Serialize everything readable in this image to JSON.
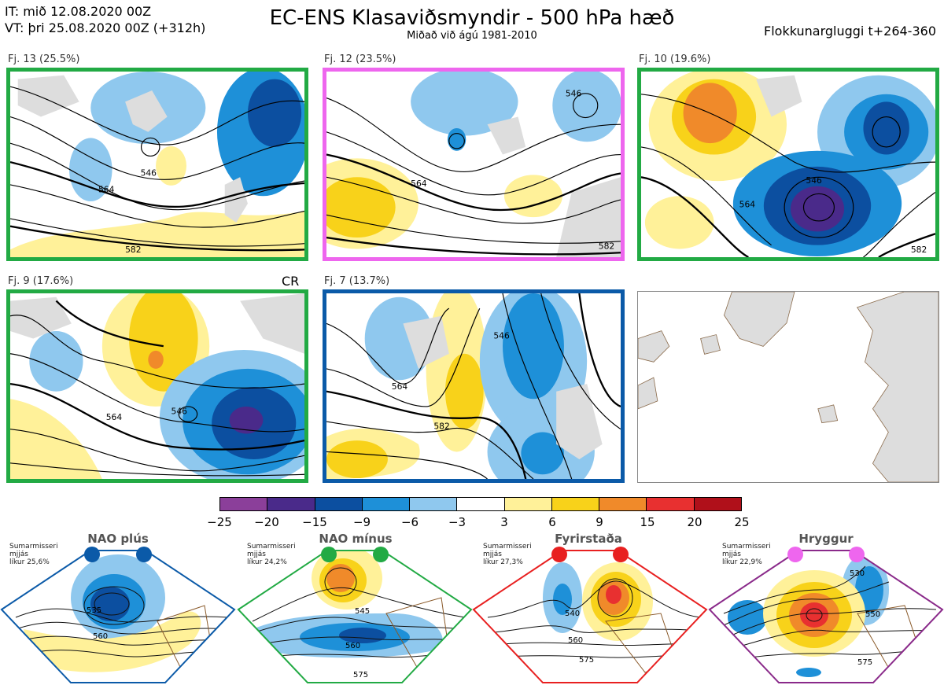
{
  "header": {
    "line1": "IT: mið 12.08.2020 00Z",
    "line2": "VT: þri 25.08.2020 00Z  (+312h)",
    "title": "EC-ENS Klasaviðsmyndir - 500 hPa hæð",
    "subtitle": "Miðað við ágú 1981-2010",
    "right": "Flokkunargluggi t+264-360"
  },
  "panels": [
    {
      "label": "Fj. 13 (25.5%)",
      "border": "#22aa44",
      "contours": [
        "546",
        "564",
        "582"
      ]
    },
    {
      "label": "Fj. 12 (23.5%)",
      "border": "#ee66ee",
      "contours": [
        "546",
        "564",
        "582"
      ]
    },
    {
      "label": "Fj. 10 (19.6%)",
      "border": "#22aa44",
      "contours": [
        "546",
        "564",
        "582"
      ]
    },
    {
      "label": "Fj. 9 (17.6%)",
      "border": "#22aa44",
      "contours": [
        "546",
        "564"
      ]
    },
    {
      "label": "Fj. 7 (13.7%)",
      "border": "#0b5aa8",
      "contours": [
        "546",
        "564",
        "582"
      ]
    }
  ],
  "cr_label": "CR",
  "colorbar": {
    "colors": [
      "#8b3f9a",
      "#4a2a8a",
      "#0c4fa0",
      "#1e90d8",
      "#8fc8ee",
      "#ffffff",
      "#fff199",
      "#f8d21a",
      "#f08a2a",
      "#e83030",
      "#b0101a"
    ],
    "ticks": [
      "−25",
      "−20",
      "−15",
      "−9",
      "−6",
      "−3",
      "3",
      "6",
      "9",
      "15",
      "20",
      "25"
    ]
  },
  "regimes": [
    {
      "title": "NAO plús",
      "note1": "Sumarmisseri",
      "note2": "mjjás",
      "note3": "líkur 25,6%",
      "color": "#0b5aa8",
      "c1": "535",
      "c2": "560"
    },
    {
      "title": "NAO mínus",
      "note1": "Sumarmisseri",
      "note2": "mjjás",
      "note3": "líkur 24,2%",
      "color": "#22aa44",
      "c1": "545",
      "c2": "560",
      "c3": "575"
    },
    {
      "title": "Fyrirstaða",
      "note1": "Sumarmisseri",
      "note2": "mjjás",
      "note3": "líkur 27,3%",
      "color": "#e82020",
      "c1": "540",
      "c2": "560",
      "c3": "575"
    },
    {
      "title": "Hryggur",
      "note1": "Sumarmisseri",
      "note2": "mjjás",
      "note3": "líkur 22,9%",
      "color": "#ee66ee",
      "c1": "530",
      "c2": "550",
      "c3": "575"
    }
  ]
}
